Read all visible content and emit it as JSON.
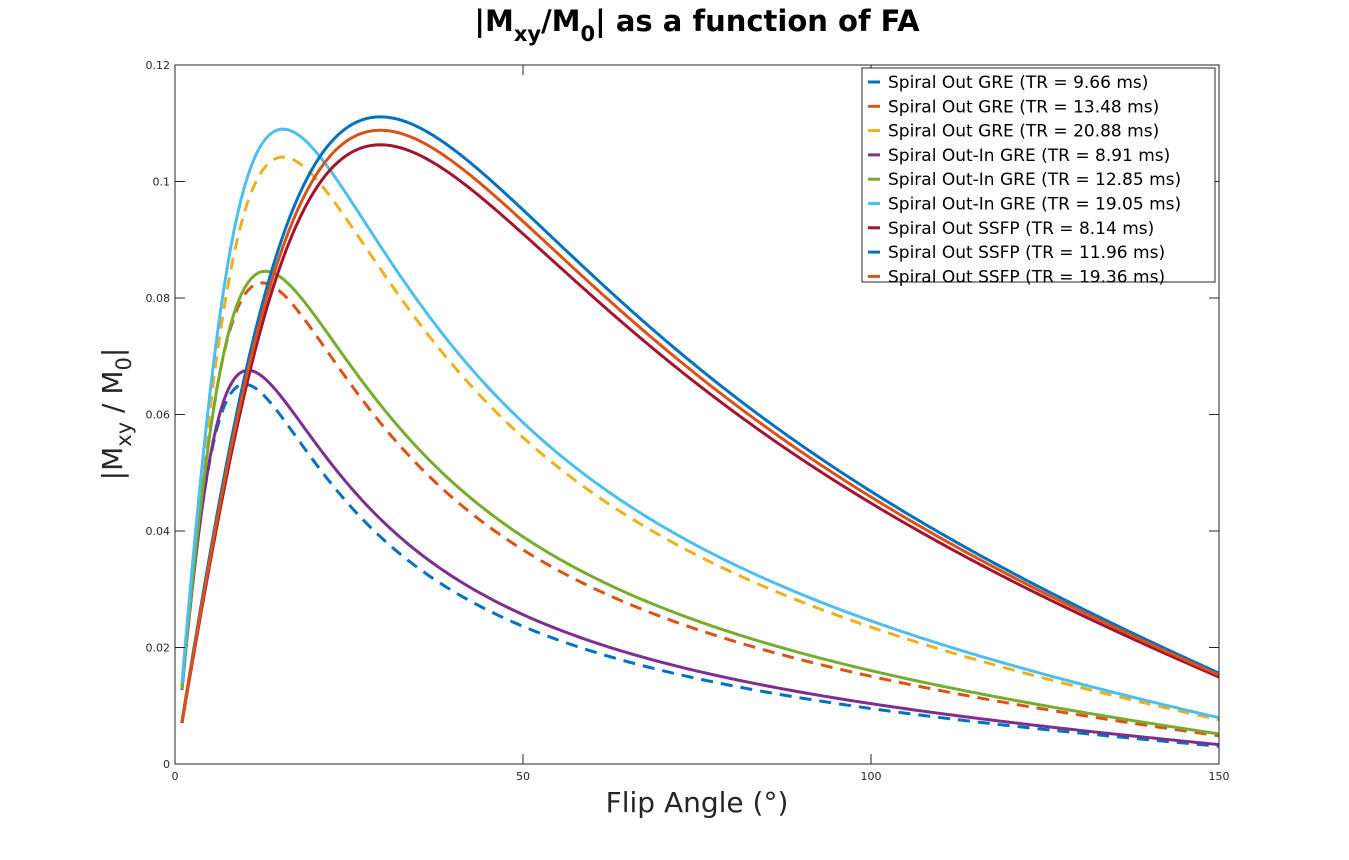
{
  "chart_data": {
    "type": "line",
    "title": {
      "main": "|M",
      "sub1": "xy",
      "mid": "/M",
      "sub2": "0",
      "rest": "| as a function of FA"
    },
    "xlabel": "Flip Angle (°)",
    "ylabel": {
      "main": "|M",
      "sub1": "xy",
      "mid": " / M",
      "sub2": "0",
      "rest": "|"
    },
    "xlim": [
      0,
      150
    ],
    "ylim": [
      0,
      0.12
    ],
    "xticks": [
      0,
      50,
      100,
      150
    ],
    "xtick_labels": [
      "0",
      "50",
      "100",
      "150"
    ],
    "yticks": [
      0,
      0.02,
      0.04,
      0.06,
      0.08,
      0.1,
      0.12
    ],
    "ytick_labels": [
      "0",
      "0.02",
      "0.04",
      "0.06",
      "0.08",
      "0.1",
      "0.12"
    ],
    "grid": false,
    "legend_position": "top-right",
    "model": "Mxy(a) = A*sin(a)*(1-E)/(1-E*cos(a)); peak at Ernst angle acos(E)",
    "series": [
      {
        "name": "Spiral Out GRE (TR = 9.66 ms)",
        "color": "#0072BD",
        "dash": true,
        "peak_angle": 10.0,
        "peak_value": 0.0652
      },
      {
        "name": "Spiral Out GRE (TR = 13.48 ms)",
        "color": "#D95319",
        "dash": true,
        "peak_angle": 12.5,
        "peak_value": 0.0826
      },
      {
        "name": "Spiral Out GRE (TR = 20.88 ms)",
        "color": "#EDB120",
        "dash": true,
        "peak_angle": 15.5,
        "peak_value": 0.1042
      },
      {
        "name": "Spiral Out-In GRE (TR = 8.91 ms)",
        "color": "#7E2F8E",
        "dash": false,
        "peak_angle": 10.5,
        "peak_value": 0.0676
      },
      {
        "name": "Spiral Out-In GRE (TR = 12.85 ms)",
        "color": "#77AC30",
        "dash": false,
        "peak_angle": 13.0,
        "peak_value": 0.0846
      },
      {
        "name": "Spiral Out-In GRE (TR = 19.05 ms)",
        "color": "#4DBEEE",
        "dash": false,
        "peak_angle": 15.5,
        "peak_value": 0.109
      },
      {
        "name": "Spiral Out SSFP (TR = 8.14 ms)",
        "color": "#A2142F",
        "dash": false,
        "peak_angle": 29.5,
        "peak_value": 0.1063
      },
      {
        "name": "Spiral Out SSFP (TR = 11.96 ms)",
        "color": "#0072BD",
        "dash": false,
        "peak_angle": 29.5,
        "peak_value": 0.1111
      },
      {
        "name": "Spiral Out SSFP (TR = 19.36 ms)",
        "color": "#D95319",
        "dash": false,
        "peak_angle": 29.5,
        "peak_value": 0.1088
      }
    ]
  }
}
